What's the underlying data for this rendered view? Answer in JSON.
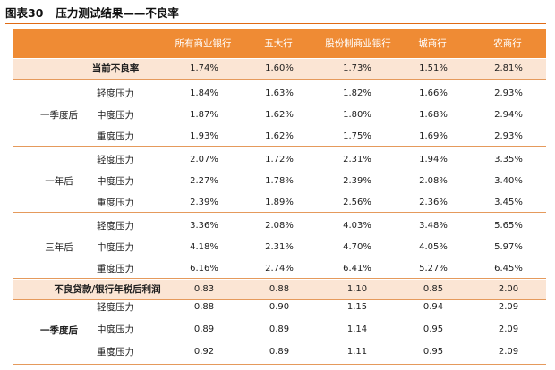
{
  "figure": {
    "label": "图表30",
    "title": "压力测试结果——不良率"
  },
  "columns": [
    "所有商业银行",
    "五大行",
    "股份制商业银行",
    "城商行",
    "农商行"
  ],
  "current_row": {
    "label": "当前不良率",
    "values": [
      "1.74%",
      "1.60%",
      "1.73%",
      "1.51%",
      "2.81%"
    ]
  },
  "groups": [
    {
      "label": "一季度后",
      "rows": [
        {
          "label": "轻度压力",
          "values": [
            "1.84%",
            "1.63%",
            "1.82%",
            "1.66%",
            "2.93%"
          ]
        },
        {
          "label": "中度压力",
          "values": [
            "1.87%",
            "1.62%",
            "1.80%",
            "1.68%",
            "2.94%"
          ]
        },
        {
          "label": "重度压力",
          "values": [
            "1.93%",
            "1.62%",
            "1.75%",
            "1.69%",
            "2.93%"
          ]
        }
      ]
    },
    {
      "label": "一年后",
      "rows": [
        {
          "label": "轻度压力",
          "values": [
            "2.07%",
            "1.72%",
            "2.31%",
            "1.94%",
            "3.35%"
          ]
        },
        {
          "label": "中度压力",
          "values": [
            "2.27%",
            "1.78%",
            "2.39%",
            "2.08%",
            "3.40%"
          ]
        },
        {
          "label": "重度压力",
          "values": [
            "2.39%",
            "1.89%",
            "2.56%",
            "2.36%",
            "3.45%"
          ]
        }
      ]
    },
    {
      "label": "三年后",
      "rows": [
        {
          "label": "轻度压力",
          "values": [
            "3.36%",
            "2.08%",
            "4.03%",
            "3.48%",
            "5.65%"
          ]
        },
        {
          "label": "中度压力",
          "values": [
            "4.18%",
            "2.31%",
            "4.70%",
            "4.05%",
            "5.97%"
          ]
        },
        {
          "label": "重度压力",
          "values": [
            "6.16%",
            "2.74%",
            "6.41%",
            "5.27%",
            "6.45%"
          ]
        }
      ]
    }
  ],
  "ratio_row": {
    "label": "不良贷款/银行年税后利润",
    "values": [
      "0.83",
      "0.88",
      "1.10",
      "0.85",
      "2.00"
    ]
  },
  "ratio_group": {
    "label": "一季度后",
    "rows": [
      {
        "label": "轻度压力",
        "values": [
          "0.88",
          "0.90",
          "1.15",
          "0.94",
          "2.09"
        ]
      },
      {
        "label": "中度压力",
        "values": [
          "0.89",
          "0.89",
          "1.14",
          "0.95",
          "2.09"
        ]
      },
      {
        "label": "重度压力",
        "values": [
          "0.92",
          "0.89",
          "1.11",
          "0.95",
          "2.09"
        ]
      }
    ]
  },
  "colors": {
    "header_bg": "#ef8b34",
    "band_bg": "#fbe5d4",
    "rule": "#e06a14"
  }
}
